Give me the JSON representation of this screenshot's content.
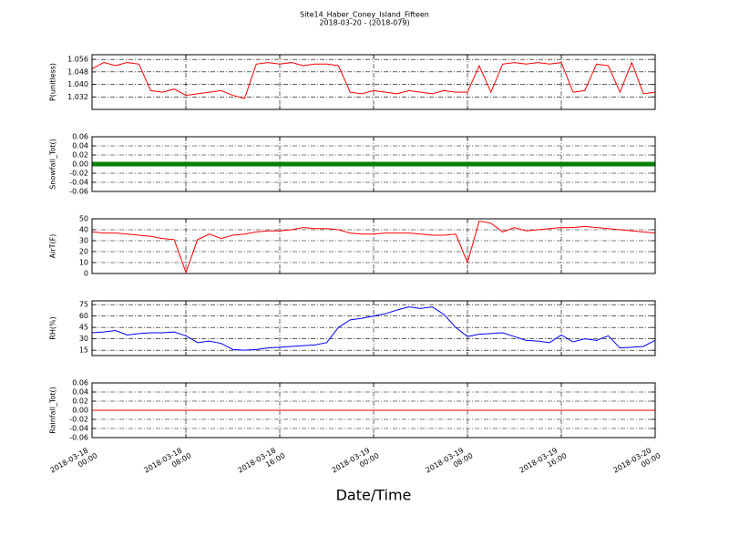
{
  "chart_data": [
    {
      "type": "line",
      "title": "Site14_Haber_Coney_Island_Fifteen",
      "subtitle": "2018-03-20 - (2018-079)",
      "ylabel": "P(unitless)",
      "color": "#ff0000",
      "x": [
        "2018-03-18 00:00",
        "2018-03-18 01:00",
        "2018-03-18 02:00",
        "2018-03-18 03:00",
        "2018-03-18 04:00",
        "2018-03-18 05:00",
        "2018-03-18 06:00",
        "2018-03-18 07:00",
        "2018-03-18 08:00",
        "2018-03-18 09:00",
        "2018-03-18 10:00",
        "2018-03-18 11:00",
        "2018-03-18 12:00",
        "2018-03-18 13:00",
        "2018-03-18 14:00",
        "2018-03-18 15:00",
        "2018-03-18 16:00",
        "2018-03-18 17:00",
        "2018-03-18 18:00",
        "2018-03-18 19:00",
        "2018-03-18 20:00",
        "2018-03-18 21:00",
        "2018-03-18 22:00",
        "2018-03-18 23:00",
        "2018-03-19 00:00",
        "2018-03-19 01:00",
        "2018-03-19 02:00",
        "2018-03-19 03:00",
        "2018-03-19 04:00",
        "2018-03-19 05:00",
        "2018-03-19 06:00",
        "2018-03-19 07:00",
        "2018-03-19 08:00",
        "2018-03-19 09:00",
        "2018-03-19 10:00",
        "2018-03-19 11:00",
        "2018-03-19 12:00",
        "2018-03-19 13:00",
        "2018-03-19 14:00",
        "2018-03-19 15:00",
        "2018-03-19 16:00",
        "2018-03-19 17:00",
        "2018-03-19 18:00",
        "2018-03-19 19:00",
        "2018-03-19 20:00",
        "2018-03-19 21:00",
        "2018-03-19 22:00",
        "2018-03-19 23:00",
        "2018-03-20 00:00"
      ],
      "values": [
        1.05,
        1.054,
        1.052,
        1.054,
        1.053,
        1.036,
        1.035,
        1.037,
        1.033,
        1.034,
        1.035,
        1.036,
        1.033,
        1.031,
        1.053,
        1.054,
        1.053,
        1.054,
        1.052,
        1.053,
        1.053,
        1.052,
        1.035,
        1.034,
        1.036,
        1.035,
        1.034,
        1.036,
        1.035,
        1.034,
        1.036,
        1.035,
        1.035,
        1.052,
        1.035,
        1.053,
        1.054,
        1.053,
        1.054,
        1.053,
        1.054,
        1.035,
        1.036,
        1.053,
        1.052,
        1.035,
        1.054,
        1.034,
        1.035
      ],
      "xlim": [
        "2018-03-18 00:00",
        "2018-03-20 00:00"
      ],
      "xticks": [
        "2018-03-18 00:00",
        "2018-03-18 08:00",
        "2018-03-18 16:00",
        "2018-03-19 00:00",
        "2018-03-19 08:00",
        "2018-03-19 16:00",
        "2018-03-20 00:00"
      ],
      "ylim": [
        1.024,
        1.059
      ],
      "yticks": [
        1.032,
        {
          "value": 1.04,
          "label": "1.040"
        },
        1.048,
        1.056
      ],
      "grid": true
    },
    {
      "type": "line",
      "ylabel": "Snowfall_Tot()",
      "color": "#008000",
      "markers": true,
      "x": [
        "2018-03-18 00:00",
        "2018-03-20 00:00"
      ],
      "values": [
        0,
        0
      ],
      "xlim": [
        "2018-03-18 00:00",
        "2018-03-20 00:00"
      ],
      "xticks": [
        "2018-03-18 00:00",
        "2018-03-18 08:00",
        "2018-03-18 16:00",
        "2018-03-19 00:00",
        "2018-03-19 08:00",
        "2018-03-19 16:00",
        "2018-03-20 00:00"
      ],
      "ylim": [
        -0.06,
        0.06
      ],
      "yticks": [
        -0.06,
        -0.04,
        -0.02,
        {
          "value": 0,
          "label": "0.00"
        },
        0.02,
        0.04,
        0.06
      ],
      "grid": true
    },
    {
      "type": "line",
      "ylabel": "AirT(F)",
      "color": "#ff0000",
      "x": [
        "2018-03-18 00:00",
        "2018-03-18 01:00",
        "2018-03-18 02:00",
        "2018-03-18 03:00",
        "2018-03-18 04:00",
        "2018-03-18 05:00",
        "2018-03-18 06:00",
        "2018-03-18 07:00",
        "2018-03-18 08:00",
        "2018-03-18 09:00",
        "2018-03-18 10:00",
        "2018-03-18 11:00",
        "2018-03-18 12:00",
        "2018-03-18 13:00",
        "2018-03-18 14:00",
        "2018-03-18 15:00",
        "2018-03-18 16:00",
        "2018-03-18 17:00",
        "2018-03-18 18:00",
        "2018-03-18 19:00",
        "2018-03-18 20:00",
        "2018-03-18 21:00",
        "2018-03-18 22:00",
        "2018-03-18 23:00",
        "2018-03-19 00:00",
        "2018-03-19 01:00",
        "2018-03-19 02:00",
        "2018-03-19 03:00",
        "2018-03-19 04:00",
        "2018-03-19 05:00",
        "2018-03-19 06:00",
        "2018-03-19 07:00",
        "2018-03-19 08:00",
        "2018-03-19 09:00",
        "2018-03-19 10:00",
        "2018-03-19 11:00",
        "2018-03-19 12:00",
        "2018-03-19 13:00",
        "2018-03-19 14:00",
        "2018-03-19 15:00",
        "2018-03-19 16:00",
        "2018-03-19 17:00",
        "2018-03-19 18:00",
        "2018-03-19 19:00",
        "2018-03-19 20:00",
        "2018-03-19 21:00",
        "2018-03-19 22:00",
        "2018-03-19 23:00",
        "2018-03-20 00:00"
      ],
      "values": [
        38,
        37,
        37,
        36,
        35,
        34,
        32,
        31,
        1,
        31,
        36,
        32,
        35,
        36,
        38,
        39,
        39,
        40,
        42,
        41,
        41,
        40,
        37,
        36,
        36,
        37,
        37,
        37,
        36,
        35,
        35,
        36,
        10,
        48,
        46,
        38,
        42,
        39,
        40,
        41,
        42,
        42,
        43,
        42,
        41,
        40,
        39,
        38,
        37
      ],
      "xlim": [
        "2018-03-18 00:00",
        "2018-03-20 00:00"
      ],
      "xticks": [
        "2018-03-18 00:00",
        "2018-03-18 08:00",
        "2018-03-18 16:00",
        "2018-03-19 00:00",
        "2018-03-19 08:00",
        "2018-03-19 16:00",
        "2018-03-20 00:00"
      ],
      "ylim": [
        0,
        50
      ],
      "yticks": [
        0,
        10,
        20,
        30,
        40,
        50
      ],
      "grid": true
    },
    {
      "type": "line",
      "ylabel": "RH(%)",
      "color": "#0000ff",
      "x": [
        "2018-03-18 00:00",
        "2018-03-18 01:00",
        "2018-03-18 02:00",
        "2018-03-18 03:00",
        "2018-03-18 04:00",
        "2018-03-18 05:00",
        "2018-03-18 06:00",
        "2018-03-18 07:00",
        "2018-03-18 08:00",
        "2018-03-18 09:00",
        "2018-03-18 10:00",
        "2018-03-18 11:00",
        "2018-03-18 12:00",
        "2018-03-18 13:00",
        "2018-03-18 14:00",
        "2018-03-18 15:00",
        "2018-03-18 16:00",
        "2018-03-18 17:00",
        "2018-03-18 18:00",
        "2018-03-18 19:00",
        "2018-03-18 20:00",
        "2018-03-18 21:00",
        "2018-03-18 22:00",
        "2018-03-18 23:00",
        "2018-03-19 00:00",
        "2018-03-19 01:00",
        "2018-03-19 02:00",
        "2018-03-19 03:00",
        "2018-03-19 04:00",
        "2018-03-19 05:00",
        "2018-03-19 06:00",
        "2018-03-19 07:00",
        "2018-03-19 08:00",
        "2018-03-19 09:00",
        "2018-03-19 10:00",
        "2018-03-19 11:00",
        "2018-03-19 12:00",
        "2018-03-19 13:00",
        "2018-03-19 14:00",
        "2018-03-19 15:00",
        "2018-03-19 16:00",
        "2018-03-19 17:00",
        "2018-03-19 18:00",
        "2018-03-19 19:00",
        "2018-03-19 20:00",
        "2018-03-19 21:00",
        "2018-03-19 22:00",
        "2018-03-19 23:00",
        "2018-03-20 00:00"
      ],
      "values": [
        38,
        39,
        41,
        35,
        37,
        38,
        38,
        39,
        34,
        25,
        27,
        24,
        16,
        15,
        16,
        18,
        19,
        20,
        21,
        22,
        25,
        45,
        55,
        57,
        60,
        63,
        68,
        72,
        70,
        72,
        62,
        45,
        33,
        36,
        37,
        38,
        33,
        28,
        27,
        25,
        35,
        26,
        30,
        28,
        34,
        18,
        19,
        20,
        28
      ],
      "xlim": [
        "2018-03-18 00:00",
        "2018-03-20 00:00"
      ],
      "xticks": [
        "2018-03-18 00:00",
        "2018-03-18 08:00",
        "2018-03-18 16:00",
        "2018-03-19 00:00",
        "2018-03-19 08:00",
        "2018-03-19 16:00",
        "2018-03-20 00:00"
      ],
      "ylim": [
        8,
        80
      ],
      "yticks": [
        15,
        30,
        45,
        60,
        75
      ],
      "grid": true
    },
    {
      "type": "line",
      "ylabel": "Rainfall_Tot()",
      "xlabel": "Date/Time",
      "color": "#ff0000",
      "x": [
        "2018-03-18 00:00",
        "2018-03-20 00:00"
      ],
      "values": [
        0,
        0
      ],
      "xlim": [
        "2018-03-18 00:00",
        "2018-03-20 00:00"
      ],
      "xticks": [
        "2018-03-18 00:00",
        "2018-03-18 08:00",
        "2018-03-18 16:00",
        "2018-03-19 00:00",
        "2018-03-19 08:00",
        "2018-03-19 16:00",
        "2018-03-20 00:00"
      ],
      "ylim": [
        -0.06,
        0.06
      ],
      "yticks": [
        -0.06,
        -0.04,
        -0.02,
        {
          "value": 0,
          "label": "0.00"
        },
        0.02,
        0.04,
        0.06
      ],
      "grid": true
    }
  ]
}
